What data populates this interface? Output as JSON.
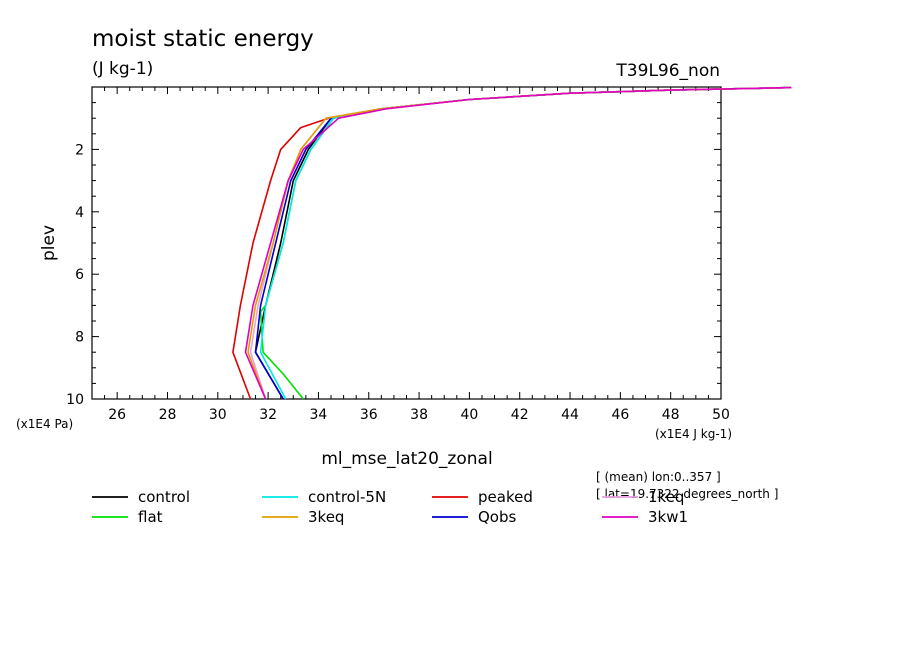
{
  "chart_data": {
    "type": "line",
    "title": "moist static energy",
    "units": "(J kg-1)",
    "run_id": "T39L96_non",
    "ylabel": "plev",
    "y_scale_label": "(x1E4 Pa)",
    "x_scale_label": "(x1E4 J kg-1)",
    "xlabel": "ml_mse_lat20_zonal",
    "xlim": [
      25,
      50
    ],
    "ylim": [
      10,
      0
    ],
    "x_ticks": [
      "26",
      "28",
      "30",
      "32",
      "34",
      "36",
      "38",
      "40",
      "42",
      "44",
      "46",
      "48",
      "50"
    ],
    "y_ticks": [
      "2",
      "4",
      "6",
      "8",
      "10"
    ],
    "grid": false,
    "legend_position": "bottom",
    "annotations": [
      "[ (mean) lon:0..357 ]",
      "[ lat=19.7322 degrees_north ]"
    ],
    "series": [
      {
        "name": "control",
        "color": "#000000",
        "points": [
          [
            32.6,
            10
          ],
          [
            31.5,
            8.5
          ],
          [
            31.9,
            7
          ],
          [
            32.5,
            5
          ],
          [
            33.0,
            3
          ],
          [
            33.6,
            2
          ],
          [
            34.5,
            1
          ],
          [
            36.5,
            0.7
          ],
          [
            40,
            0.4
          ],
          [
            44,
            0.2
          ],
          [
            48,
            0.1
          ],
          [
            52.8,
            0.02
          ]
        ]
      },
      {
        "name": "peaked",
        "color": "#e00000",
        "points": [
          [
            31.3,
            10
          ],
          [
            30.6,
            8.5
          ],
          [
            30.9,
            7
          ],
          [
            31.4,
            5
          ],
          [
            32.1,
            3
          ],
          [
            32.5,
            2
          ],
          [
            33.3,
            1.3
          ],
          [
            34.4,
            1
          ],
          [
            36.5,
            0.7
          ],
          [
            40,
            0.4
          ],
          [
            44,
            0.2
          ],
          [
            48,
            0.1
          ],
          [
            52.8,
            0.02
          ]
        ]
      },
      {
        "name": "flat",
        "color": "#00e000",
        "points": [
          [
            33.4,
            10
          ],
          [
            32.6,
            9.2
          ],
          [
            31.8,
            8.5
          ],
          [
            31.7,
            7.2
          ],
          [
            31.9,
            7
          ],
          [
            32.6,
            5
          ],
          [
            33.1,
            3
          ],
          [
            33.7,
            2
          ],
          [
            34.6,
            1
          ],
          [
            36.5,
            0.7
          ],
          [
            40,
            0.4
          ],
          [
            44,
            0.2
          ],
          [
            48,
            0.1
          ],
          [
            52.8,
            0.02
          ]
        ]
      },
      {
        "name": "Qobs",
        "color": "#0000d0",
        "points": [
          [
            32.6,
            10
          ],
          [
            31.5,
            8.5
          ],
          [
            31.7,
            7
          ],
          [
            32.3,
            5
          ],
          [
            32.9,
            3
          ],
          [
            33.5,
            2
          ],
          [
            34.5,
            1
          ],
          [
            36.5,
            0.7
          ],
          [
            40,
            0.4
          ],
          [
            44,
            0.2
          ],
          [
            48,
            0.1
          ],
          [
            52.8,
            0.02
          ]
        ]
      },
      {
        "name": "control-5N",
        "color": "#00e8e8",
        "points": [
          [
            32.7,
            10
          ],
          [
            31.7,
            8.5
          ],
          [
            31.9,
            7
          ],
          [
            32.6,
            5
          ],
          [
            33.1,
            3
          ],
          [
            33.7,
            2
          ],
          [
            34.6,
            1
          ],
          [
            36.5,
            0.7
          ],
          [
            40,
            0.4
          ],
          [
            44,
            0.2
          ],
          [
            48,
            0.1
          ],
          [
            52.8,
            0.02
          ]
        ]
      },
      {
        "name": "1keq",
        "color": "#e8a0e0",
        "points": [
          [
            31.9,
            10
          ],
          [
            31.3,
            8.5
          ],
          [
            31.6,
            7
          ],
          [
            32.2,
            5
          ],
          [
            32.8,
            3
          ],
          [
            33.3,
            2
          ],
          [
            34.3,
            1
          ],
          [
            36.5,
            0.7
          ],
          [
            40,
            0.4
          ],
          [
            44,
            0.2
          ],
          [
            48,
            0.1
          ],
          [
            52.8,
            0.02
          ]
        ]
      },
      {
        "name": "3keq",
        "color": "#e0a000",
        "points": [
          [
            31.9,
            10
          ],
          [
            31.2,
            8.5
          ],
          [
            31.5,
            7
          ],
          [
            32.2,
            5
          ],
          [
            32.8,
            3
          ],
          [
            33.3,
            2
          ],
          [
            34.3,
            1
          ],
          [
            36.5,
            0.7
          ],
          [
            40,
            0.4
          ],
          [
            44,
            0.2
          ],
          [
            48,
            0.1
          ],
          [
            52.8,
            0.02
          ]
        ]
      },
      {
        "name": "3kw1",
        "color": "#e000c0",
        "points": [
          [
            31.9,
            10
          ],
          [
            31.1,
            8.5
          ],
          [
            31.4,
            7
          ],
          [
            32.1,
            5
          ],
          [
            32.8,
            3
          ],
          [
            33.4,
            2
          ],
          [
            34.8,
            1
          ],
          [
            36.7,
            0.7
          ],
          [
            40,
            0.4
          ],
          [
            44,
            0.2
          ],
          [
            48,
            0.1
          ],
          [
            52.8,
            0.02
          ]
        ]
      }
    ]
  }
}
